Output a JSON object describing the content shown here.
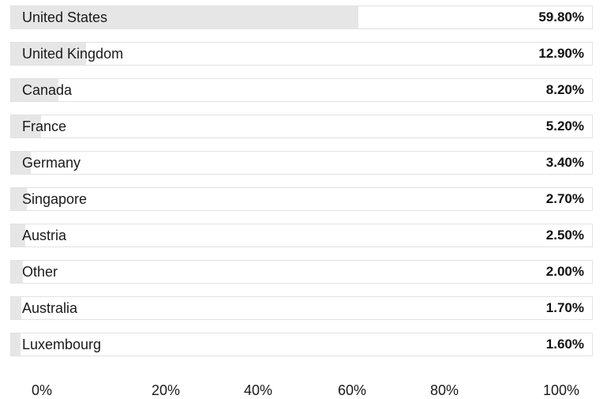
{
  "chart_data": {
    "type": "bar",
    "orientation": "horizontal",
    "title": "",
    "xlabel": "",
    "ylabel": "",
    "categories": [
      "United States",
      "United Kingdom",
      "Canada",
      "France",
      "Germany",
      "Singapore",
      "Austria",
      "Other",
      "Australia",
      "Luxembourg"
    ],
    "values": [
      59.8,
      12.9,
      8.2,
      5.2,
      3.4,
      2.7,
      2.5,
      2.0,
      1.7,
      1.6
    ],
    "value_labels": [
      "59.80%",
      "12.90%",
      "8.20%",
      "5.20%",
      "3.40%",
      "2.70%",
      "2.50%",
      "2.00%",
      "1.70%",
      "1.60%"
    ],
    "xlim": [
      0,
      100
    ],
    "x_ticks": [
      0,
      20,
      40,
      60,
      80,
      100
    ],
    "x_tick_labels": [
      "0%",
      "20%",
      "40%",
      "60%",
      "80%",
      "100%"
    ],
    "grid": false,
    "legend": "none",
    "colors": {
      "bar_fill": "#e6e6e6",
      "row_background": "#ffffff",
      "row_border": "#e2e2e2",
      "text": "#1a1a1a"
    }
  }
}
